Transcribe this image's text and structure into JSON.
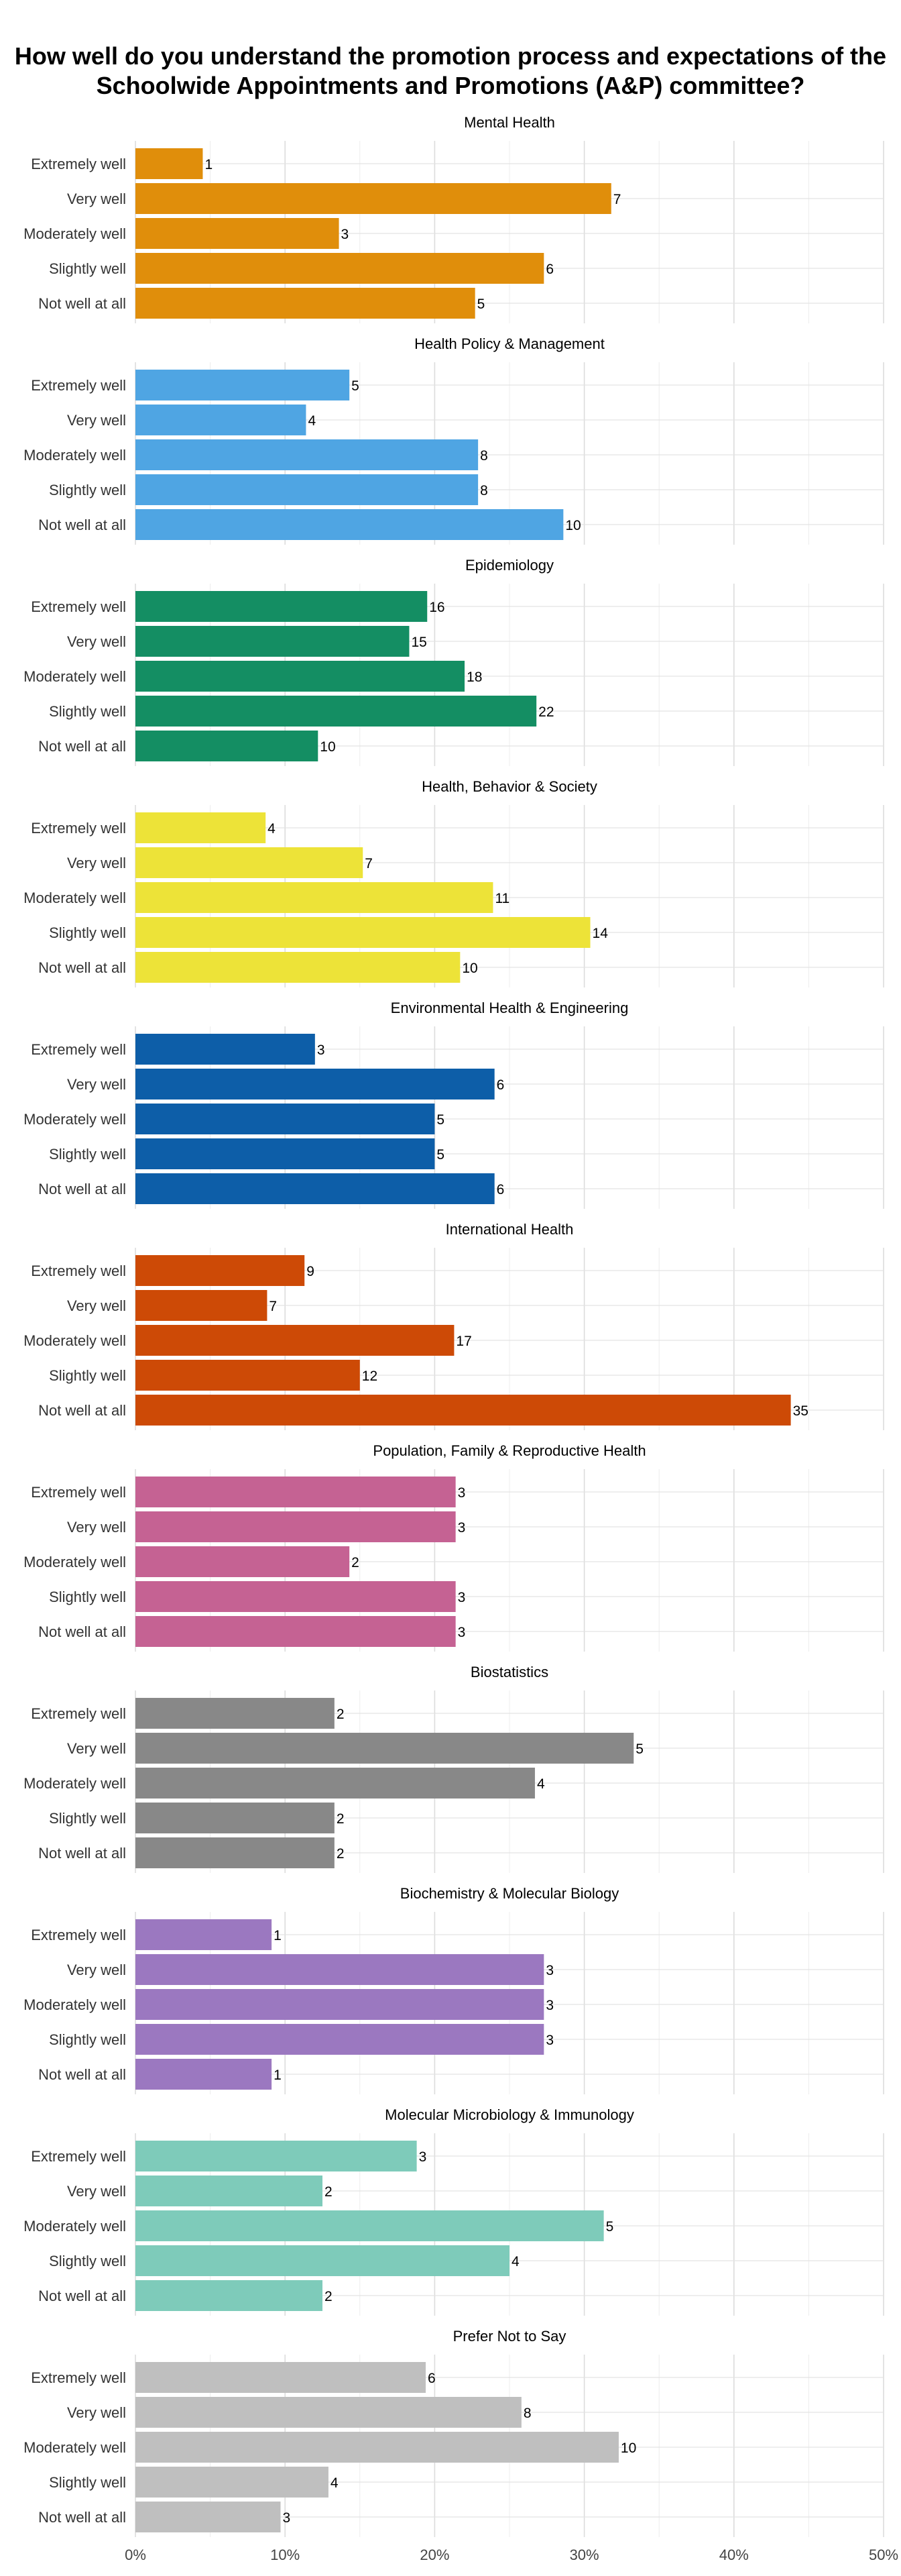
{
  "chart_data": {
    "type": "bar",
    "orientation": "horizontal",
    "title": "How well do you understand the promotion process and expectations of the Schoolwide Appointments and Promotions (A&P) committee?",
    "categories": [
      "Extremely well",
      "Very well",
      "Moderately well",
      "Slightly well",
      "Not well at all"
    ],
    "x_ticks": [
      "0%",
      "10%",
      "20%",
      "30%",
      "40%",
      "50%"
    ],
    "xlim": [
      0,
      50
    ],
    "grid": true,
    "legend": "none",
    "panels": [
      {
        "title": "Mental Health",
        "color": "#E08E0B",
        "percent": [
          4.5,
          31.8,
          13.6,
          27.3,
          22.7
        ],
        "counts": [
          "1",
          "7",
          "3",
          "6",
          "5"
        ]
      },
      {
        "title": "Health Policy & Management",
        "color": "#4FA5E3",
        "percent": [
          14.3,
          11.4,
          22.9,
          22.9,
          28.6
        ],
        "counts": [
          "5",
          "4",
          "8",
          "8",
          "10"
        ]
      },
      {
        "title": "Epidemiology",
        "color": "#148E63",
        "percent": [
          19.5,
          18.3,
          22.0,
          26.8,
          12.2
        ],
        "counts": [
          "16",
          "15",
          "18",
          "22",
          "10"
        ]
      },
      {
        "title": "Health, Behavior & Society",
        "color": "#EDE338",
        "percent": [
          8.7,
          15.2,
          23.9,
          30.4,
          21.7
        ],
        "counts": [
          "4",
          "7",
          "11",
          "14",
          "10"
        ]
      },
      {
        "title": "Environmental Health & Engineering",
        "color": "#0D5EA8",
        "percent": [
          12.0,
          24.0,
          20.0,
          20.0,
          24.0
        ],
        "counts": [
          "3",
          "6",
          "5",
          "5",
          "6"
        ]
      },
      {
        "title": "International Health",
        "color": "#CD4A06",
        "percent": [
          11.3,
          8.8,
          21.3,
          15.0,
          43.8
        ],
        "counts": [
          "9",
          "7",
          "17",
          "12",
          "35"
        ]
      },
      {
        "title": "Population, Family & Reproductive Health",
        "color": "#C56293",
        "percent": [
          21.4,
          21.4,
          14.3,
          21.4,
          21.4
        ],
        "counts": [
          "3",
          "3",
          "2",
          "3",
          "3"
        ]
      },
      {
        "title": "Biostatistics",
        "color": "#888888",
        "percent": [
          13.3,
          33.3,
          26.7,
          13.3,
          13.3
        ],
        "counts": [
          "2",
          "5",
          "4",
          "2",
          "2"
        ]
      },
      {
        "title": "Biochemistry & Molecular Biology",
        "color": "#9B78C0",
        "percent": [
          9.1,
          27.3,
          27.3,
          27.3,
          9.1
        ],
        "counts": [
          "1",
          "3",
          "3",
          "3",
          "1"
        ]
      },
      {
        "title": "Molecular Microbiology & Immunology",
        "color": "#7ECBBA",
        "percent": [
          18.8,
          12.5,
          31.3,
          25.0,
          12.5
        ],
        "counts": [
          "3",
          "2",
          "5",
          "4",
          "2"
        ]
      },
      {
        "title": "Prefer Not to Say",
        "color": "#BFBFBF",
        "percent": [
          19.4,
          25.8,
          32.3,
          12.9,
          9.7
        ],
        "counts": [
          "6",
          "8",
          "10",
          "4",
          "3"
        ]
      }
    ]
  }
}
